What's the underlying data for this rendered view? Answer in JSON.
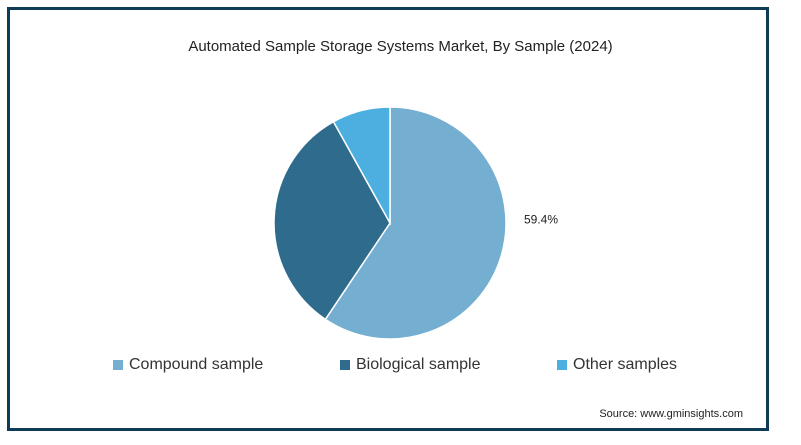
{
  "chart_data": {
    "type": "pie",
    "title": "Automated Sample Storage Systems Market, By Sample (2024)",
    "categories": [
      "Compound sample",
      "Biological sample",
      "Other samples"
    ],
    "values": [
      59.4,
      32.5,
      8.1
    ],
    "data_labels": [
      "59.4%",
      "",
      ""
    ],
    "colors": [
      "#74aed1",
      "#2f6b8d",
      "#4daee0"
    ],
    "legend_placement": "bottom"
  },
  "source": "Source: www.gminsights.com"
}
